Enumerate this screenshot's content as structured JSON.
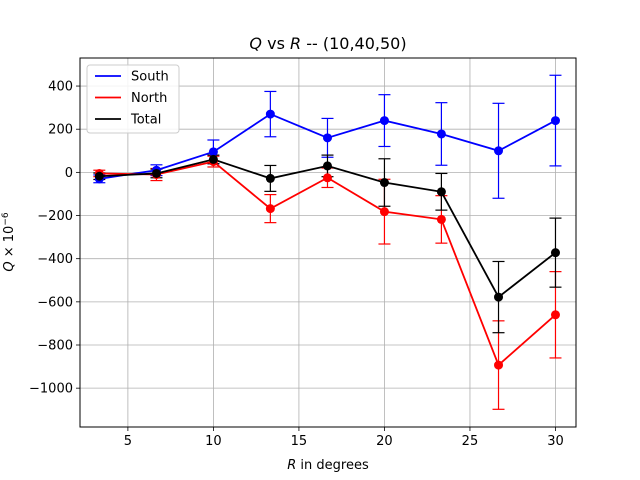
{
  "chart_data": {
    "type": "line",
    "title": {
      "q": "Q",
      "vs": " vs ",
      "r": "R",
      "rest": " -- (10,40,50)"
    },
    "xlabel": {
      "r": "R",
      "rest": " in degrees"
    },
    "ylabel": {
      "q": "Q",
      "mult": " × 10",
      "exp": "−6"
    },
    "xlim": [
      2.2,
      31.2
    ],
    "ylim": [
      -1180,
      530
    ],
    "xticks": [
      5,
      10,
      15,
      20,
      25,
      30
    ],
    "xtick_labels": [
      "5",
      "10",
      "15",
      "20",
      "25",
      "30"
    ],
    "yticks": [
      -1000,
      -800,
      -600,
      -400,
      -200,
      0,
      200,
      400
    ],
    "ytick_labels": [
      "−1000",
      "−800",
      "−600",
      "−400",
      "−200",
      "0",
      "200",
      "400"
    ],
    "grid": true,
    "legend_position": "top-left",
    "x": [
      3.33,
      6.67,
      10,
      13.33,
      16.67,
      20,
      23.33,
      26.67,
      30
    ],
    "series": [
      {
        "name": "South",
        "color": "#0000ff",
        "values": [
          -30,
          10,
          95,
          270,
          160,
          240,
          178,
          100,
          240
        ],
        "errors": [
          18,
          25,
          55,
          105,
          90,
          120,
          145,
          220,
          210
        ]
      },
      {
        "name": "North",
        "color": "#ff0000",
        "values": [
          -5,
          -10,
          50,
          -168,
          -25,
          -182,
          -218,
          -893,
          -660
        ],
        "errors": [
          15,
          28,
          25,
          65,
          45,
          150,
          110,
          205,
          200
        ]
      },
      {
        "name": "Total",
        "color": "#000000",
        "values": [
          -18,
          -5,
          60,
          -28,
          30,
          -47,
          -90,
          -578,
          -372
        ],
        "errors": [
          15,
          20,
          20,
          60,
          50,
          110,
          85,
          165,
          160
        ]
      }
    ]
  }
}
